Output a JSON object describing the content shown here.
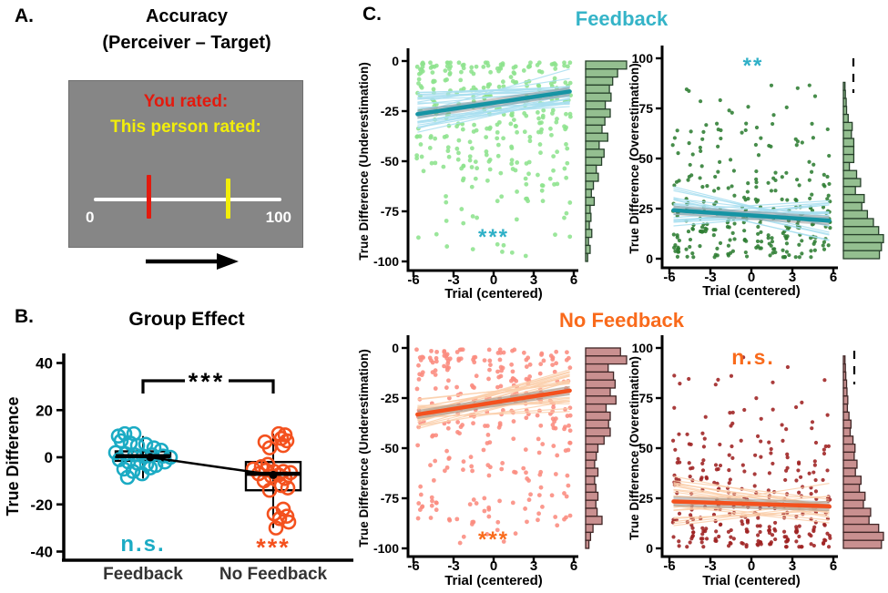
{
  "figure": {
    "panel_a": {
      "label": "A.",
      "title_line1": "Accuracy",
      "title_line2": "(Perceiver – Target)",
      "you_rated": "You rated:",
      "person_rated": "This person rated:",
      "scale_min": "0",
      "scale_max": "100",
      "colors": {
        "box_bg": "#868686",
        "you_text": "#e31a0e",
        "person_text": "#f2ee0a",
        "scale_line": "#ffffff",
        "red_marker": "#e31a0e",
        "yellow_marker": "#f2ee0a"
      }
    },
    "panel_b": {
      "label": "B.",
      "title": "Group Effect"
    },
    "panel_c": {
      "label": "C.",
      "title_feedback": "Feedback",
      "title_feedback_color": "#35b4c8",
      "title_nofeedback": "No Feedback",
      "title_nofeedback_color": "#f96a1b"
    }
  },
  "chart_data": [
    {
      "id": "group_effect",
      "type": "boxplot",
      "title": "Group Effect",
      "ylabel": "True Difference",
      "yticks": [
        40,
        20,
        0,
        -20,
        -40
      ],
      "ylim": [
        -44,
        44
      ],
      "categories": [
        "Feedback",
        "No Feedback"
      ],
      "sig_between": "***",
      "mean_connector": true,
      "groups": [
        {
          "name": "Feedback",
          "color": "#1babc4",
          "sig": "n.s.",
          "box": {
            "low": -9,
            "q1": -1.5,
            "median": 0.5,
            "q3": 2.5,
            "high": 9,
            "mean": 0
          },
          "points": [
            [
              -27,
              9
            ],
            [
              -20,
              10
            ],
            [
              -24,
              7
            ],
            [
              -10,
              10
            ],
            [
              -14,
              6
            ],
            [
              -6,
              5
            ],
            [
              3,
              5.5
            ],
            [
              12,
              4
            ],
            [
              20,
              3
            ],
            [
              -30,
              2
            ],
            [
              -19,
              1.5
            ],
            [
              -9,
              1
            ],
            [
              0,
              0.5
            ],
            [
              10,
              1
            ],
            [
              22,
              0.5
            ],
            [
              30,
              0
            ],
            [
              -26,
              -1
            ],
            [
              -16,
              -2
            ],
            [
              -6,
              -2.5
            ],
            [
              4,
              -3
            ],
            [
              14,
              -3.5
            ],
            [
              -21,
              -5
            ],
            [
              -11,
              -6
            ],
            [
              -1,
              -7
            ],
            [
              -17,
              -8.5
            ],
            [
              8,
              -4.5
            ],
            [
              24,
              -2
            ]
          ]
        },
        {
          "name": "No Feedback",
          "color": "#f4511e",
          "sig": "***",
          "box": {
            "low": -30,
            "q1": -14,
            "median": -7,
            "q3": -2,
            "high": 10,
            "mean": -7.5
          },
          "points": [
            [
              6,
              10
            ],
            [
              13,
              9.5
            ],
            [
              9,
              8
            ],
            [
              15,
              7
            ],
            [
              -9,
              6.5
            ],
            [
              11,
              5
            ],
            [
              -4,
              4
            ],
            [
              -6,
              -3
            ],
            [
              -13,
              -4
            ],
            [
              -22,
              -5
            ],
            [
              -8,
              -5.5
            ],
            [
              1,
              -6
            ],
            [
              11,
              -6
            ],
            [
              19,
              -6.5
            ],
            [
              -16,
              -7
            ],
            [
              6,
              -7.5
            ],
            [
              -2,
              -8
            ],
            [
              13,
              -9
            ],
            [
              -10,
              -10
            ],
            [
              9,
              -12
            ],
            [
              16,
              -13
            ],
            [
              -4,
              -14
            ],
            [
              11,
              -22
            ],
            [
              1,
              -24
            ],
            [
              15,
              -25
            ],
            [
              7,
              -26
            ],
            [
              17,
              -27.5
            ],
            [
              3,
              -30
            ]
          ]
        }
      ]
    },
    {
      "id": "feedback_under",
      "type": "scatter",
      "group": "Feedback",
      "xlabel": "Trial (centered)",
      "ylabel": "True Difference (Underestimation)",
      "xticks": [
        -6,
        -3,
        0,
        3,
        6
      ],
      "yticks": [
        0,
        -25,
        -50,
        -75,
        -100
      ],
      "xlim": [
        -6,
        6
      ],
      "ylim": [
        -100,
        0
      ],
      "orientation": "under",
      "trend": {
        "x1": -5.7,
        "y1": -26.5,
        "x2": 5.7,
        "y2": -15.2,
        "color": "#1694a4",
        "band_halfwidth": 2.3
      },
      "subject_lines": {
        "n": 30,
        "spread_intercept": 6.5,
        "spread_slope": 1.0,
        "clamp": [
          -38,
          -4
        ],
        "color": "#a9dff0"
      },
      "points": {
        "per_column": 27,
        "jitter": 0.27,
        "radius": 2.4,
        "color": "#8de28d",
        "seed": 11
      },
      "marginal_hist": {
        "fill": "#94bf90",
        "stroke": "#26402a",
        "dashed_top": false,
        "bins": [
          1.0,
          0.78,
          0.66,
          0.58,
          0.62,
          0.48,
          0.6,
          0.47,
          0.4,
          0.54,
          0.33,
          0.45,
          0.39,
          0.26,
          0.31,
          0.19,
          0.14,
          0.21,
          0.11,
          0.13,
          0.09,
          0.15,
          0.07,
          0.11,
          0.05
        ]
      },
      "sig": {
        "label": "***",
        "color": "#2fb0c7"
      }
    },
    {
      "id": "feedback_over",
      "type": "scatter",
      "group": "Feedback",
      "xlabel": "Trial (centered)",
      "ylabel": "True Difference (Overestimation)",
      "xticks": [
        -6,
        -3,
        0,
        3,
        6
      ],
      "yticks": [
        100,
        75,
        50,
        25,
        0
      ],
      "xlim": [
        -6,
        6
      ],
      "ylim": [
        0,
        100
      ],
      "orientation": "over",
      "trend": {
        "x1": -5.7,
        "y1": 24.2,
        "x2": 5.7,
        "y2": 19.0,
        "color": "#1694a4",
        "band_halfwidth": 2.3
      },
      "subject_lines": {
        "n": 26,
        "spread_intercept": 5.5,
        "spread_slope": 1.3,
        "clamp": [
          9,
          44
        ],
        "color": "#a9dff0"
      },
      "points": {
        "per_column": 25,
        "jitter": 0.27,
        "radius": 2.1,
        "color": "#2e7d32",
        "seed": 22
      },
      "marginal_hist": {
        "fill": "#94bf90",
        "stroke": "#26402a",
        "dashed_top": true,
        "bins": [
          0,
          0,
          0,
          0.04,
          0.05,
          0.07,
          0.08,
          0.12,
          0.22,
          0.2,
          0.26,
          0.26,
          0.26,
          0.15,
          0.33,
          0.43,
          0.3,
          0.52,
          0.46,
          0.6,
          0.75,
          0.88,
          1.0,
          0.95,
          0.9
        ]
      },
      "sig": {
        "label": "**",
        "color": "#2fb0c7"
      }
    },
    {
      "id": "nofeedback_under",
      "type": "scatter",
      "group": "No Feedback",
      "xlabel": "Trial (centered)",
      "ylabel": "True Difference (Underestimation)",
      "xticks": [
        -6,
        -3,
        0,
        3,
        6
      ],
      "yticks": [
        0,
        -25,
        -50,
        -75,
        -100
      ],
      "xlim": [
        -6,
        6
      ],
      "ylim": [
        -100,
        0
      ],
      "orientation": "under",
      "trend": {
        "x1": -5.7,
        "y1": -33.2,
        "x2": 5.7,
        "y2": -21.3,
        "color": "#f4511e",
        "band_halfwidth": 2.3
      },
      "subject_lines": {
        "n": 30,
        "spread_intercept": 6.0,
        "spread_slope": 1.1,
        "clamp": [
          -46,
          -9
        ],
        "color": "#fbcfab"
      },
      "points": {
        "per_column": 26,
        "jitter": 0.27,
        "radius": 2.4,
        "color": "#fb8b7e",
        "seed": 33
      },
      "marginal_hist": {
        "fill": "#c99090",
        "stroke": "#402626",
        "dashed_top": false,
        "bins": [
          0.85,
          1.0,
          0.55,
          0.68,
          0.72,
          0.6,
          0.74,
          0.5,
          0.6,
          0.56,
          0.6,
          0.45,
          0.3,
          0.26,
          0.22,
          0.3,
          0.22,
          0.25,
          0.3,
          0.25,
          0.28,
          0.4,
          0.18,
          0.12,
          0.08
        ]
      },
      "sig": {
        "label": "***",
        "color": "#f96a1b"
      }
    },
    {
      "id": "nofeedback_over",
      "type": "scatter",
      "group": "No Feedback",
      "xlabel": "Trial (centered)",
      "ylabel": "True Difference (Overetimation)",
      "xticks": [
        -6,
        -3,
        0,
        3,
        6
      ],
      "yticks": [
        100,
        75,
        50,
        25,
        0
      ],
      "xlim": [
        -6,
        6
      ],
      "ylim": [
        0,
        100
      ],
      "orientation": "over",
      "trend": {
        "x1": -5.7,
        "y1": 23.4,
        "x2": 5.7,
        "y2": 21.0,
        "color": "#f4511e",
        "band_halfwidth": 2.5
      },
      "subject_lines": {
        "n": 26,
        "spread_intercept": 7.0,
        "spread_slope": 1.4,
        "clamp": [
          4,
          44
        ],
        "color": "#fbcfab"
      },
      "points": {
        "per_column": 25,
        "jitter": 0.27,
        "radius": 2.1,
        "color": "#9e2121",
        "seed": 44
      },
      "marginal_hist": {
        "fill": "#c99090",
        "stroke": "#402626",
        "dashed_top": true,
        "bins": [
          0,
          0.04,
          0.05,
          0.06,
          0.08,
          0.09,
          0.11,
          0.1,
          0.14,
          0.19,
          0.17,
          0.24,
          0.29,
          0.27,
          0.34,
          0.3,
          0.44,
          0.4,
          0.54,
          0.5,
          0.68,
          0.64,
          0.88,
          1.0,
          0.95
        ]
      },
      "sig": {
        "label": "n.s.",
        "color": "#f96a1b"
      }
    }
  ]
}
